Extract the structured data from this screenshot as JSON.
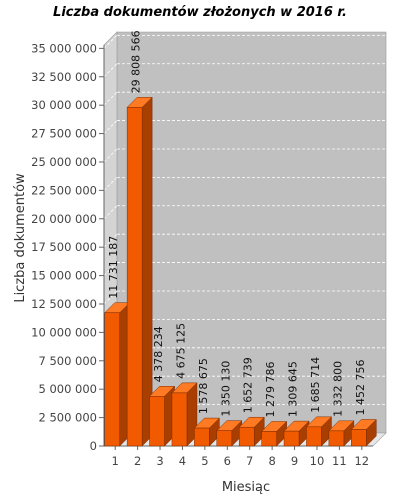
{
  "chart_data": {
    "type": "bar",
    "title": "Liczba dokumentów złożonych w 2016 r.",
    "xlabel": "Miesiąc",
    "ylabel": "Liczba dokumentów",
    "categories": [
      "1",
      "2",
      "3",
      "4",
      "5",
      "6",
      "7",
      "8",
      "9",
      "10",
      "11",
      "12"
    ],
    "values": [
      11731187,
      29808566,
      4378234,
      4675125,
      1578675,
      1350130,
      1652739,
      1279786,
      1309645,
      1685714,
      1332800,
      1452756
    ],
    "data_labels": [
      "11 731 187",
      "29 808 566",
      "4 378 234",
      "4 675 125",
      "1 578 675",
      "1 350 130",
      "1 652 739",
      "1 279 786",
      "1 309 645",
      "1 685 714",
      "1 332 800",
      "1 452 756"
    ],
    "y_ticks": [
      0,
      2500000,
      5000000,
      7500000,
      10000000,
      12500000,
      15000000,
      17500000,
      20000000,
      22500000,
      25000000,
      27500000,
      30000000,
      32500000,
      35000000
    ],
    "y_tick_labels": [
      "0",
      "2 500 000",
      "5 000 000",
      "7 500 000",
      "10 000 000",
      "12 500 000",
      "15 000 000",
      "17 500 000",
      "20 000 000",
      "22 500 000",
      "25 000 000",
      "27 500 000",
      "30 000 000",
      "32 500 000",
      "35 000 000"
    ],
    "ylim": [
      0,
      36000000
    ],
    "grid": true,
    "legend": "none",
    "colors": {
      "bar_front": "#f25a00",
      "bar_top": "#ff7a22",
      "bar_side": "#a83e00",
      "bar_outline": "#7a2a00",
      "plot_back": "#c0c0c0",
      "plot_wall_left": "#d4d4d4",
      "plot_floor": "#e6e6e6"
    }
  }
}
